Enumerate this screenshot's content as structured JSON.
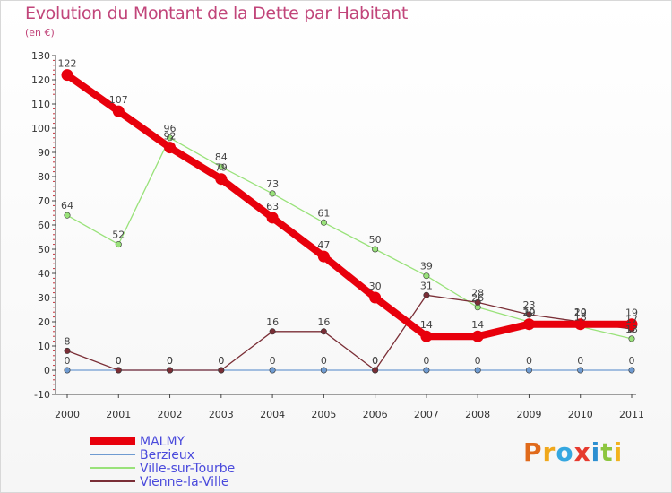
{
  "title": "Evolution du Montant de la Dette par Habitant",
  "subtitle": "(en €)",
  "logo": {
    "text": "Proxiti",
    "colors": [
      "#e06a1b",
      "#f0a81c",
      "#35a7e0",
      "#e63a2e",
      "#2c8fd1",
      "#8dc63f",
      "#f2b21e"
    ]
  },
  "chart_data": {
    "type": "line",
    "x": [
      "2000",
      "2001",
      "2002",
      "2003",
      "2004",
      "2005",
      "2006",
      "2007",
      "2008",
      "2009",
      "2010",
      "2011"
    ],
    "ylim": [
      -10,
      130
    ],
    "yticks": [
      -10,
      0,
      10,
      20,
      30,
      40,
      50,
      60,
      70,
      80,
      90,
      100,
      110,
      120,
      130
    ],
    "grid": false,
    "legend": "bottom-left",
    "series": [
      {
        "name": "Berzieux",
        "color": "#6f9bd1",
        "values": [
          0,
          0,
          0,
          0,
          0,
          0,
          0,
          0,
          0,
          0,
          0,
          0
        ]
      },
      {
        "name": "Ville-sur-Tourbe",
        "color": "#99e27a",
        "values": [
          64,
          52,
          96,
          84,
          73,
          61,
          50,
          39,
          26,
          20,
          18,
          13
        ]
      },
      {
        "name": "Vienne-la-Ville",
        "color": "#7a2e36",
        "values": [
          8,
          0,
          0,
          0,
          16,
          16,
          0,
          31,
          28,
          23,
          20,
          17
        ]
      },
      {
        "name": "MALMY",
        "color": "#e8000c",
        "values": [
          122,
          107,
          92,
          79,
          63,
          47,
          30,
          14,
          14,
          19,
          19,
          19
        ]
      }
    ],
    "legend_order": [
      "MALMY",
      "Berzieux",
      "Ville-sur-Tourbe",
      "Vienne-la-Ville"
    ]
  }
}
